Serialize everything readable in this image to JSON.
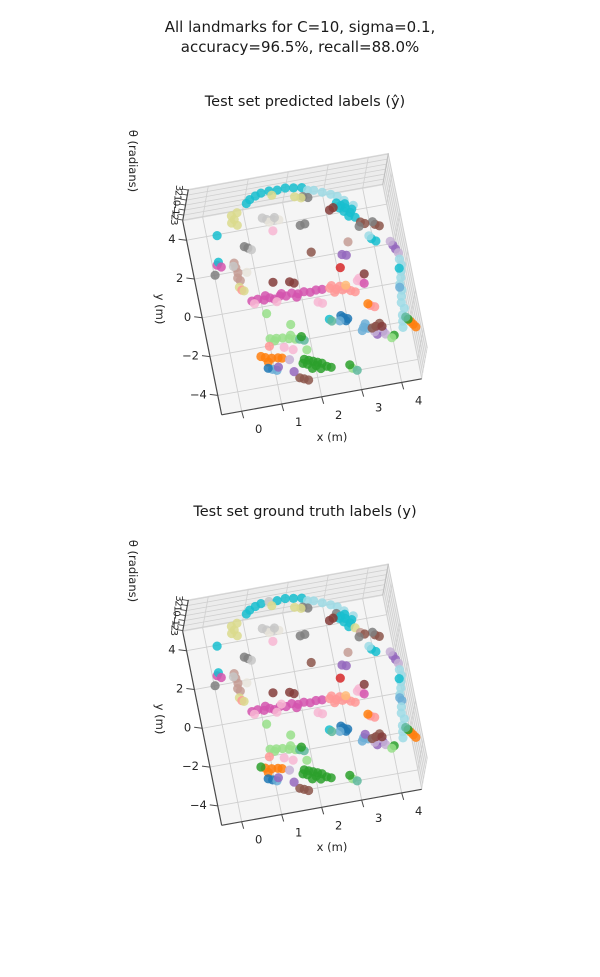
{
  "figure": {
    "title_line1": "All landmarks for C=10, sigma=0.1,",
    "title_line2": "accuracy=96.5%, recall=88.0%",
    "background": "#ffffff",
    "pane_floor_color": "#f5f5f5",
    "pane_wall_color": "#ececec",
    "grid_color": "#cfcfcf",
    "axis_color": "#4a4a4a",
    "marker_opacity": 0.85
  },
  "palette": [
    "#17becf",
    "#9edae5",
    "#dbdb8d",
    "#7f7f7f",
    "#c7c7c7",
    "#9467bd",
    "#c5b0d5",
    "#843c39",
    "#8c564b",
    "#c49c94",
    "#d453ae",
    "#f7b6d2",
    "#ff9896",
    "#ff7f0e",
    "#ffbb78",
    "#2ca02c",
    "#98df8a",
    "#1f77b4",
    "#6baed6",
    "#e8e4da",
    "#5fb89e",
    "#d62728"
  ],
  "chart_data": {
    "type": "scatter",
    "projection": "3d",
    "point_format": [
      "x_m",
      "y_m",
      "theta_rad",
      "palette_index"
    ],
    "subplots": [
      {
        "id": "predicted",
        "title": "Test set predicted labels (ŷ)",
        "xlabel": "x (m)",
        "ylabel": "y (m)",
        "zlabel": "θ (radians)",
        "xticks": [
          0,
          1,
          2,
          3,
          4
        ],
        "yticks": [
          -4,
          -2,
          0,
          2,
          4
        ],
        "zticks": [
          3,
          2,
          1,
          0,
          -1,
          -2,
          -3
        ],
        "xlim": [
          -0.5,
          4.5
        ],
        "ylim": [
          -5,
          5
        ],
        "zlim": [
          -3.1416,
          3.1416
        ],
        "colors_key": "predicted"
      },
      {
        "id": "ground_truth",
        "title": "Test set ground truth labels (y)",
        "xlabel": "x (m)",
        "ylabel": "y (m)",
        "zlabel": "θ (radians)",
        "xticks": [
          0,
          1,
          2,
          3,
          4
        ],
        "yticks": [
          -4,
          -2,
          0,
          2,
          4
        ],
        "zticks": [
          3,
          2,
          1,
          0,
          -1,
          -2,
          -3
        ],
        "xlim": [
          -0.5,
          4.5
        ],
        "ylim": [
          -5,
          5
        ],
        "zlim": [
          -3.1416,
          3.1416
        ],
        "colors_key": "truth"
      }
    ],
    "points": [
      [
        0.9,
        4.15,
        1.6,
        0
      ],
      [
        1.0,
        4.3,
        1.65,
        0
      ],
      [
        1.15,
        4.42,
        1.7,
        0
      ],
      [
        1.3,
        4.5,
        1.75,
        0
      ],
      [
        1.5,
        4.52,
        1.8,
        0
      ],
      [
        1.7,
        4.48,
        1.85,
        0
      ],
      [
        1.9,
        4.5,
        1.9,
        0
      ],
      [
        2.1,
        4.42,
        1.95,
        0
      ],
      [
        2.3,
        4.35,
        2.0,
        0
      ],
      [
        2.45,
        4.3,
        1.45,
        1
      ],
      [
        2.6,
        4.25,
        1.4,
        1
      ],
      [
        2.8,
        4.1,
        1.3,
        1
      ],
      [
        3.0,
        3.95,
        1.2,
        1
      ],
      [
        3.15,
        3.8,
        1.15,
        1
      ],
      [
        3.3,
        3.55,
        1.1,
        1
      ],
      [
        3.5,
        3.25,
        1.0,
        1
      ],
      [
        2.3,
        4.0,
        1.55,
        3
      ],
      [
        2.42,
        3.92,
        1.5,
        3
      ],
      [
        2.1,
        4.05,
        1.6,
        2
      ],
      [
        2.25,
        3.95,
        1.55,
        2
      ],
      [
        1.55,
        4.3,
        1.75,
        2
      ],
      [
        3.05,
        3.3,
        1.2,
        2
      ],
      [
        3.1,
        3.5,
        1.05,
        0
      ],
      [
        3.2,
        3.35,
        1.0,
        0
      ],
      [
        3.3,
        3.2,
        0.95,
        0
      ],
      [
        3.25,
        3.05,
        0.9,
        0
      ],
      [
        3.4,
        2.95,
        0.85,
        0
      ],
      [
        3.35,
        2.8,
        0.8,
        0
      ],
      [
        3.15,
        3.25,
        0.97,
        0
      ],
      [
        3.45,
        3.1,
        0.88,
        0
      ],
      [
        3.3,
        3.4,
        1.02,
        0
      ],
      [
        3.5,
        2.7,
        0.75,
        0
      ],
      [
        2.9,
        3.2,
        1.1,
        7
      ],
      [
        3.0,
        3.3,
        1.05,
        7
      ],
      [
        1.3,
        3.1,
        1.9,
        4
      ],
      [
        1.45,
        3.05,
        1.85,
        4
      ],
      [
        1.6,
        3.0,
        1.8,
        19
      ],
      [
        1.35,
        2.95,
        1.88,
        19
      ],
      [
        1.2,
        3.2,
        1.95,
        4
      ],
      [
        1.5,
        3.15,
        1.82,
        4
      ],
      [
        2.1,
        2.6,
        1.5,
        3
      ],
      [
        2.22,
        2.65,
        1.45,
        3
      ],
      [
        0.45,
        3.5,
        2.3,
        2
      ],
      [
        0.5,
        3.3,
        2.25,
        2
      ],
      [
        0.42,
        3.15,
        2.28,
        2
      ],
      [
        0.55,
        3.0,
        2.2,
        2
      ],
      [
        0.6,
        3.6,
        2.32,
        2
      ],
      [
        0.0,
        2.6,
        2.5,
        0
      ],
      [
        1.4,
        2.5,
        1.8,
        11
      ],
      [
        0.7,
        1.8,
        2.1,
        3
      ],
      [
        0.78,
        1.7,
        2.05,
        4
      ],
      [
        0.62,
        1.9,
        2.12,
        3
      ],
      [
        3.95,
        2.2,
        0.6,
        8
      ],
      [
        4.05,
        2.1,
        0.55,
        8
      ],
      [
        3.9,
        2.35,
        0.62,
        3
      ],
      [
        3.8,
        1.55,
        0.5,
        0
      ],
      [
        3.9,
        1.4,
        0.45,
        0
      ],
      [
        3.75,
        1.7,
        0.55,
        1
      ],
      [
        3.6,
        2.4,
        0.8,
        8
      ],
      [
        3.7,
        2.3,
        0.75,
        8
      ],
      [
        3.55,
        2.2,
        0.78,
        3
      ],
      [
        4.3,
        1.1,
        0.2,
        5
      ],
      [
        4.35,
        0.9,
        0.15,
        5
      ],
      [
        4.25,
        1.3,
        0.25,
        6
      ],
      [
        4.4,
        0.7,
        0.1,
        6
      ],
      [
        3.0,
        0.95,
        0.8,
        5
      ],
      [
        3.1,
        0.88,
        0.78,
        5
      ],
      [
        3.2,
        1.5,
        0.9,
        9
      ],
      [
        2.25,
        1.25,
        1.2,
        8
      ],
      [
        -0.15,
        1.1,
        2.6,
        10
      ],
      [
        -0.1,
        1.25,
        2.55,
        0
      ],
      [
        -0.05,
        1.0,
        2.5,
        10
      ],
      [
        -0.25,
        0.6,
        2.7,
        3
      ],
      [
        0.28,
        1.1,
        2.4,
        9
      ],
      [
        0.3,
        0.85,
        2.4,
        9
      ],
      [
        0.33,
        0.6,
        2.35,
        9
      ],
      [
        0.3,
        0.35,
        2.3,
        9
      ],
      [
        0.35,
        0.2,
        2.3,
        9
      ],
      [
        0.25,
        0.95,
        2.38,
        4
      ],
      [
        0.3,
        -0.1,
        2.2,
        2
      ],
      [
        0.35,
        -0.25,
        2.15,
        12
      ],
      [
        0.4,
        -0.3,
        2.1,
        2
      ],
      [
        0.65,
        -0.3,
        -0.3,
        10
      ],
      [
        0.8,
        -0.25,
        -0.32,
        10
      ],
      [
        0.95,
        -0.35,
        -0.3,
        10
      ],
      [
        1.1,
        -0.28,
        -0.35,
        10
      ],
      [
        1.2,
        -0.4,
        -0.3,
        10
      ],
      [
        1.35,
        -0.3,
        -0.28,
        10
      ],
      [
        1.5,
        -0.35,
        -0.3,
        10
      ],
      [
        1.65,
        -0.25,
        -0.32,
        10
      ],
      [
        1.8,
        -0.35,
        -0.3,
        10
      ],
      [
        1.95,
        -0.3,
        -0.28,
        10
      ],
      [
        2.1,
        -0.38,
        -0.3,
        10
      ],
      [
        2.25,
        -0.32,
        -0.3,
        10
      ],
      [
        2.4,
        -0.35,
        -0.28,
        10
      ],
      [
        1.0,
        -0.15,
        -0.3,
        10
      ],
      [
        1.4,
        -0.18,
        -0.33,
        10
      ],
      [
        1.75,
        -0.5,
        -0.3,
        10
      ],
      [
        0.7,
        -0.45,
        -0.3,
        11
      ],
      [
        1.25,
        -0.55,
        -0.3,
        11
      ],
      [
        1.65,
        0.3,
        -0.2,
        7
      ],
      [
        1.75,
        0.2,
        -0.22,
        7
      ],
      [
        1.25,
        0.45,
        -0.3,
        7
      ],
      [
        2.6,
        -0.3,
        -0.5,
        12
      ],
      [
        2.75,
        -0.4,
        -0.5,
        12
      ],
      [
        2.9,
        -0.5,
        -0.52,
        12
      ],
      [
        3.0,
        -0.45,
        -0.5,
        12
      ],
      [
        3.1,
        -0.6,
        -0.55,
        12
      ],
      [
        2.7,
        -0.55,
        -0.5,
        12
      ],
      [
        2.85,
        -0.3,
        -0.48,
        12
      ],
      [
        3.2,
        -0.7,
        -0.55,
        12
      ],
      [
        2.65,
        -0.2,
        -0.45,
        12
      ],
      [
        3.0,
        -0.3,
        -0.5,
        14
      ],
      [
        3.3,
        -0.2,
        -0.4,
        11
      ],
      [
        3.4,
        -0.3,
        -0.42,
        11
      ],
      [
        3.35,
        -0.1,
        -0.38,
        11
      ],
      [
        3.45,
        -0.4,
        -0.4,
        10
      ],
      [
        2.95,
        0.6,
        -0.4,
        21
      ],
      [
        3.5,
        0.1,
        -0.5,
        7
      ],
      [
        2.25,
        -0.9,
        -0.45,
        11
      ],
      [
        2.35,
        -1.0,
        -0.47,
        11
      ],
      [
        4.4,
        0.4,
        0.0,
        1
      ],
      [
        4.42,
        0.1,
        -0.05,
        1
      ],
      [
        4.38,
        -0.2,
        -0.1,
        1
      ],
      [
        4.35,
        -0.5,
        -0.15,
        1
      ],
      [
        4.3,
        -0.8,
        -0.2,
        1
      ],
      [
        4.32,
        -1.1,
        -0.25,
        1
      ],
      [
        4.28,
        -1.4,
        -0.3,
        1
      ],
      [
        4.25,
        -1.7,
        -0.35,
        1
      ],
      [
        4.3,
        -2.0,
        -0.4,
        1
      ],
      [
        4.22,
        -2.3,
        -0.45,
        1
      ],
      [
        4.2,
        -2.6,
        -0.5,
        1
      ],
      [
        4.18,
        -2.9,
        -0.55,
        1
      ],
      [
        4.35,
        -0.05,
        0.0,
        0
      ],
      [
        4.28,
        -0.95,
        -0.22,
        18
      ],
      [
        4.45,
        -2.8,
        -0.7,
        13
      ],
      [
        4.5,
        -2.95,
        -0.72,
        13
      ],
      [
        4.4,
        -2.65,
        -0.68,
        13
      ],
      [
        4.35,
        -2.5,
        -0.68,
        15
      ],
      [
        4.3,
        -2.38,
        -0.66,
        20
      ],
      [
        3.5,
        -1.5,
        -0.6,
        12
      ],
      [
        3.6,
        -1.6,
        -0.62,
        12
      ],
      [
        3.45,
        -1.4,
        -0.58,
        13
      ],
      [
        2.8,
        -1.8,
        -0.8,
        17
      ],
      [
        2.9,
        -1.9,
        -0.82,
        17
      ],
      [
        2.75,
        -1.7,
        -0.78,
        17
      ],
      [
        2.85,
        -2.0,
        -0.8,
        17
      ],
      [
        2.7,
        -1.95,
        -0.8,
        18
      ],
      [
        3.25,
        -2.45,
        -0.9,
        18
      ],
      [
        3.35,
        -2.55,
        -0.9,
        18
      ],
      [
        3.2,
        -2.6,
        -0.92,
        18
      ],
      [
        3.3,
        -2.3,
        -0.88,
        18
      ],
      [
        3.6,
        -2.7,
        -1.0,
        5
      ],
      [
        3.7,
        -2.8,
        -1.0,
        5
      ],
      [
        3.55,
        -2.9,
        -1.02,
        5
      ],
      [
        3.65,
        -2.6,
        -0.98,
        6
      ],
      [
        3.5,
        -2.75,
        -1.0,
        6
      ],
      [
        3.75,
        -2.95,
        -1.05,
        6
      ],
      [
        3.55,
        -2.5,
        -0.95,
        7
      ],
      [
        3.65,
        -2.4,
        -0.92,
        8
      ],
      [
        3.45,
        -2.55,
        -0.97,
        8
      ],
      [
        3.7,
        -2.55,
        -1.0,
        7
      ],
      [
        2.45,
        -1.8,
        -0.7,
        0
      ],
      [
        2.5,
        -1.9,
        -0.72,
        20
      ],
      [
        3.95,
        -3.1,
        -1.0,
        15
      ],
      [
        3.88,
        -3.2,
        -1.02,
        16
      ],
      [
        1.0,
        -1.85,
        -2.3,
        16
      ],
      [
        1.15,
        -1.9,
        -2.25,
        16
      ],
      [
        1.3,
        -1.95,
        -2.2,
        16
      ],
      [
        1.45,
        -2.05,
        -2.15,
        16
      ],
      [
        1.6,
        -2.15,
        -2.1,
        16
      ],
      [
        1.1,
        -2.0,
        -2.28,
        16
      ],
      [
        1.5,
        -1.9,
        -2.12,
        16
      ],
      [
        1.7,
        -2.2,
        -2.05,
        20
      ],
      [
        1.8,
        -2.3,
        -2.0,
        20
      ],
      [
        1.75,
        -2.1,
        -2.0,
        15
      ],
      [
        1.5,
        -2.6,
        -2.3,
        11
      ],
      [
        1.3,
        -2.4,
        -2.35,
        11
      ],
      [
        0.95,
        -2.2,
        -2.4,
        12
      ],
      [
        0.8,
        -2.7,
        -2.5,
        13
      ],
      [
        0.95,
        -2.8,
        -2.45,
        13
      ],
      [
        1.1,
        -2.85,
        -2.4,
        13
      ],
      [
        0.85,
        -2.95,
        -2.48,
        13
      ],
      [
        0.7,
        -2.6,
        -2.52,
        13
      ],
      [
        1.2,
        -2.9,
        -2.4,
        13
      ],
      [
        1.7,
        -3.3,
        -1.8,
        15
      ],
      [
        1.8,
        -3.4,
        -1.75,
        15
      ],
      [
        1.9,
        -3.5,
        -1.7,
        15
      ],
      [
        2.0,
        -3.6,
        -1.65,
        15
      ],
      [
        2.1,
        -3.7,
        -1.6,
        15
      ],
      [
        1.75,
        -3.6,
        -1.72,
        15
      ],
      [
        1.95,
        -3.75,
        -1.68,
        15
      ],
      [
        2.2,
        -3.9,
        -1.6,
        15
      ],
      [
        1.85,
        -3.85,
        -1.7,
        15
      ],
      [
        2.05,
        -3.95,
        -1.62,
        15
      ],
      [
        1.65,
        -3.5,
        -1.78,
        15
      ],
      [
        2.3,
        -4.0,
        -1.55,
        15
      ],
      [
        1.6,
        -4.3,
        -1.7,
        8
      ],
      [
        1.7,
        -4.4,
        -1.68,
        8
      ],
      [
        1.5,
        -4.2,
        -1.72,
        8
      ],
      [
        0.9,
        -3.45,
        -2.1,
        18
      ],
      [
        1.0,
        -3.55,
        -2.05,
        18
      ],
      [
        0.8,
        -3.35,
        -2.12,
        17
      ],
      [
        1.05,
        -3.4,
        -2.05,
        5
      ],
      [
        1.4,
        -3.8,
        -1.9,
        5
      ],
      [
        1.35,
        -3.15,
        -1.95,
        6
      ],
      [
        2.8,
        -4.3,
        -1.3,
        16
      ],
      [
        2.75,
        -4.1,
        -1.32,
        15
      ],
      [
        2.9,
        -4.45,
        -1.28,
        20
      ],
      [
        1.8,
        -2.9,
        -1.6,
        16
      ],
      [
        1.05,
        -0.5,
        -2.6,
        16
      ],
      [
        1.55,
        -1.4,
        -2.0,
        16
      ],
      [
        0.55,
        0.55,
        2.3,
        19
      ]
    ],
    "truth_color_overrides": {
      "4": 4,
      "22": 3,
      "31": 2,
      "58": 9,
      "96": 11,
      "126": 18,
      "151": 5,
      "183": 15,
      "200": 17
    }
  }
}
